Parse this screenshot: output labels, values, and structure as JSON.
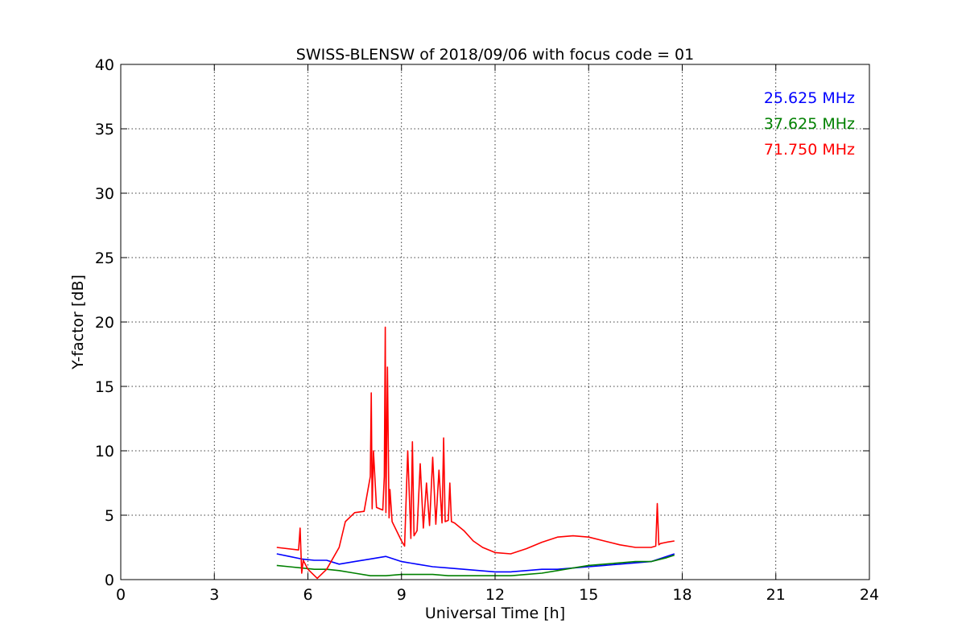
{
  "chart_data": {
    "type": "line",
    "title": "SWISS-BLENSW of 2018/09/06 with focus code = 01",
    "xlabel": "Universal Time [h]",
    "ylabel": "Y-factor [dB]",
    "xlim": [
      0,
      24
    ],
    "ylim": [
      0,
      40
    ],
    "xticks": [
      0,
      3,
      6,
      9,
      12,
      15,
      18,
      21,
      24
    ],
    "yticks": [
      0,
      5,
      10,
      15,
      20,
      25,
      30,
      35,
      40
    ],
    "xtick_labels": [
      "0",
      "3",
      "6",
      "9",
      "12",
      "15",
      "18",
      "21",
      "24"
    ],
    "ytick_labels": [
      "0",
      "5",
      "10",
      "15",
      "20",
      "25",
      "30",
      "35",
      "40"
    ],
    "grid": true,
    "legend_position": "top-right",
    "series": [
      {
        "name": "25.625 MHz",
        "color": "#0000ff",
        "x": [
          5.0,
          5.4,
          5.8,
          6.2,
          6.6,
          7.0,
          7.5,
          8.0,
          8.5,
          9.0,
          9.5,
          10.0,
          10.5,
          11.0,
          11.5,
          12.0,
          12.5,
          13.0,
          13.5,
          14.0,
          14.5,
          15.0,
          15.5,
          16.0,
          16.5,
          17.0,
          17.5,
          17.75
        ],
        "y": [
          2.0,
          1.8,
          1.6,
          1.5,
          1.5,
          1.2,
          1.4,
          1.6,
          1.8,
          1.4,
          1.2,
          1.0,
          0.9,
          0.8,
          0.7,
          0.6,
          0.6,
          0.7,
          0.8,
          0.8,
          0.9,
          1.0,
          1.1,
          1.2,
          1.3,
          1.4,
          1.8,
          2.0
        ]
      },
      {
        "name": "37.625 MHz",
        "color": "#008000",
        "x": [
          5.0,
          5.4,
          5.8,
          6.2,
          6.6,
          7.0,
          7.5,
          8.0,
          8.5,
          9.0,
          9.5,
          10.0,
          10.5,
          11.0,
          11.5,
          12.0,
          12.5,
          13.0,
          13.5,
          14.0,
          14.5,
          15.0,
          15.5,
          16.0,
          16.5,
          17.0,
          17.5,
          17.75
        ],
        "y": [
          1.1,
          1.0,
          0.9,
          0.8,
          0.8,
          0.7,
          0.5,
          0.3,
          0.3,
          0.4,
          0.4,
          0.4,
          0.3,
          0.3,
          0.3,
          0.3,
          0.3,
          0.4,
          0.5,
          0.7,
          0.9,
          1.1,
          1.2,
          1.3,
          1.4,
          1.4,
          1.7,
          1.9
        ]
      },
      {
        "name": "71.750 MHz",
        "color": "#ff0000",
        "x": [
          5.0,
          5.7,
          5.75,
          5.8,
          5.85,
          6.0,
          6.3,
          6.6,
          7.0,
          7.2,
          7.5,
          7.8,
          8.0,
          8.03,
          8.06,
          8.1,
          8.2,
          8.4,
          8.45,
          8.48,
          8.5,
          8.55,
          8.6,
          8.63,
          8.7,
          9.0,
          9.1,
          9.2,
          9.3,
          9.35,
          9.4,
          9.5,
          9.6,
          9.7,
          9.8,
          9.9,
          10.0,
          10.1,
          10.2,
          10.3,
          10.35,
          10.4,
          10.5,
          10.55,
          10.6,
          10.7,
          11.0,
          11.3,
          11.6,
          12.0,
          12.5,
          13.0,
          13.5,
          14.0,
          14.5,
          15.0,
          15.5,
          16.0,
          16.5,
          17.0,
          17.15,
          17.2,
          17.25,
          17.3,
          17.5,
          17.75
        ],
        "y": [
          2.5,
          2.3,
          4.0,
          0.5,
          1.5,
          0.8,
          0.1,
          0.8,
          2.5,
          4.5,
          5.2,
          5.3,
          8.0,
          14.5,
          5.5,
          10.0,
          5.6,
          5.4,
          8.0,
          19.6,
          5.2,
          16.5,
          4.8,
          7.0,
          4.5,
          3.0,
          2.6,
          10.0,
          3.2,
          10.7,
          3.4,
          3.8,
          9.0,
          4.0,
          7.5,
          4.2,
          9.5,
          4.3,
          8.5,
          4.4,
          11.0,
          4.5,
          4.6,
          7.5,
          4.5,
          4.4,
          3.8,
          3.0,
          2.5,
          2.1,
          2.0,
          2.4,
          2.9,
          3.3,
          3.4,
          3.3,
          3.0,
          2.7,
          2.5,
          2.5,
          2.6,
          5.9,
          2.7,
          2.8,
          2.9,
          3.0
        ]
      }
    ]
  }
}
